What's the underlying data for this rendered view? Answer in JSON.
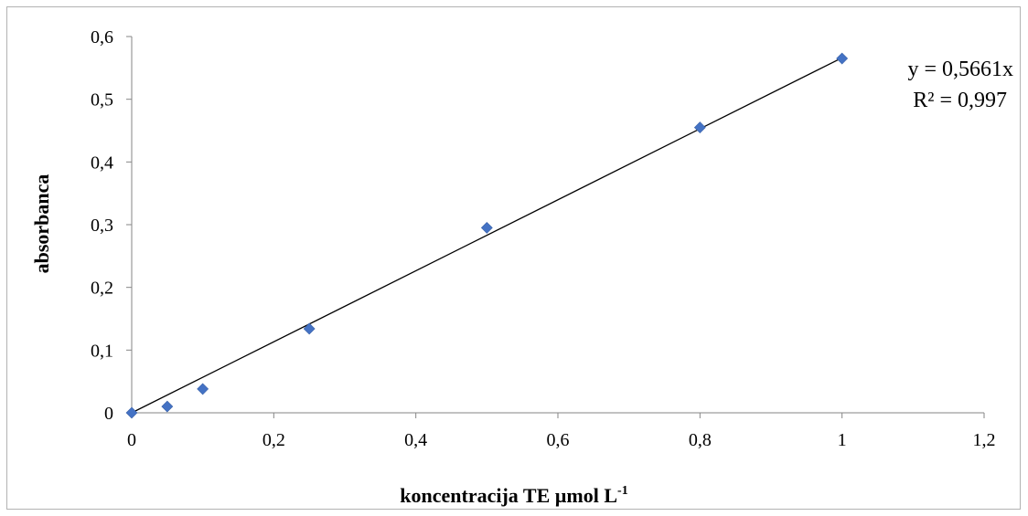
{
  "chart_data": {
    "type": "scatter",
    "title": "",
    "xlabel_main": "koncentracija TE µmol L",
    "xlabel_sup": "-1",
    "ylabel": "absorbanca",
    "xlim": [
      0,
      1.2
    ],
    "ylim": [
      0,
      0.6
    ],
    "x_ticks": [
      "0",
      "0,2",
      "0,4",
      "0,6",
      "0,8",
      "1",
      "1,2"
    ],
    "y_ticks": [
      "0",
      "0,1",
      "0,2",
      "0,3",
      "0,4",
      "0,5",
      "0,6"
    ],
    "grid": false,
    "legend": "none",
    "series": [
      {
        "marker": "diamond",
        "color": "#4472c4",
        "x": [
          0,
          0.05,
          0.1,
          0.25,
          0.5,
          0.8,
          1.0
        ],
        "y": [
          0.0,
          0.01,
          0.038,
          0.134,
          0.295,
          0.455,
          0.565
        ]
      }
    ],
    "trendline": {
      "type": "linear",
      "slope": 0.5661,
      "intercept": 0,
      "x_range": [
        0,
        1.0
      ],
      "color": "#000000",
      "equation": "y = 0,5661x",
      "r_squared": "R² = 0,997"
    }
  }
}
